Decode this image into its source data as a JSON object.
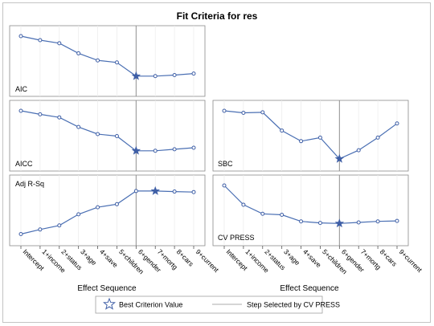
{
  "chart_data": {
    "type": "line",
    "title": "Fit Criteria for res",
    "categories": [
      "Intercept",
      "1+income",
      "2+status",
      "3+age",
      "4+save",
      "5+children",
      "6+gender",
      "7+mortg",
      "8+cars",
      "9+current"
    ],
    "xlabel": "Effect Sequence",
    "selected_step": "6+gender",
    "panels": [
      {
        "label": "AIC",
        "values": [
          100,
          92,
          86,
          66,
          52,
          48,
          21,
          21,
          23,
          26
        ],
        "best_index": 6
      },
      {
        "label": "AICC",
        "values": [
          100,
          93,
          87,
          68,
          54,
          50,
          21,
          21,
          24,
          27
        ],
        "best_index": 6
      },
      {
        "label": "SBC",
        "values": [
          100,
          96,
          97,
          61,
          40,
          47,
          5,
          22,
          47,
          75
        ],
        "best_index": 6
      },
      {
        "label": "Adj R-Sq",
        "values": [
          4,
          13,
          21,
          43,
          57,
          63,
          89,
          89,
          88,
          87
        ],
        "best_index": 7
      },
      {
        "label": "CV PRESS",
        "values": [
          100,
          62,
          44,
          42,
          29,
          26,
          25,
          27,
          29,
          30
        ],
        "best_index": 6
      }
    ],
    "legend": {
      "position": "bottom",
      "best_label": "Best Criterion Value",
      "step_label": "Step Selected by CV PRESS"
    },
    "colors": {
      "line": "#4a6fb3",
      "marker": "#3f5fa6",
      "ref_line": "#8f8f8f",
      "panel_border": "#8a8a8a"
    }
  }
}
